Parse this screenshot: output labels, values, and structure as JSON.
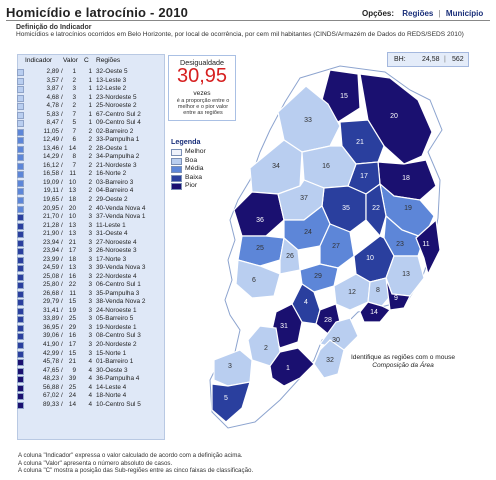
{
  "header": {
    "title": "Homicídio e latrocínio - 2010",
    "options_label": "Opções:",
    "options": [
      "Regiões",
      "Município"
    ]
  },
  "definition": {
    "heading": "Definição do Indicador",
    "text": "Homicídios e latrocínios ocorridos em Belo Horizonte, por local de ocorrência, por cem mil habitantes (CINDS/Armazém de Dados do REDS/SEDS 2010)"
  },
  "table": {
    "headers": {
      "indicator": "Indicador",
      "value": "Valor",
      "class": "C",
      "region": "Regiões"
    },
    "rows": [
      {
        "ind": "2,89",
        "val": "1",
        "c": "1",
        "reg": "32-Oeste 5"
      },
      {
        "ind": "3,57",
        "val": "2",
        "c": "1",
        "reg": "13-Leste 3"
      },
      {
        "ind": "3,87",
        "val": "3",
        "c": "1",
        "reg": "12-Leste 2"
      },
      {
        "ind": "4,68",
        "val": "3",
        "c": "1",
        "reg": "23-Nordeste 5"
      },
      {
        "ind": "4,78",
        "val": "2",
        "c": "1",
        "reg": "25-Noroeste 2"
      },
      {
        "ind": "5,83",
        "val": "7",
        "c": "1",
        "reg": "67-Centro Sul 2"
      },
      {
        "ind": "8,47",
        "val": "5",
        "c": "1",
        "reg": "09-Centro Sul 4"
      },
      {
        "ind": "11,05",
        "val": "7",
        "c": "2",
        "reg": "02-Barreiro 2"
      },
      {
        "ind": "12,49",
        "val": "6",
        "c": "2",
        "reg": "33-Pampulha 1"
      },
      {
        "ind": "13,46",
        "val": "14",
        "c": "2",
        "reg": "28-Oeste 1"
      },
      {
        "ind": "14,29",
        "val": "8",
        "c": "2",
        "reg": "34-Pampulha 2"
      },
      {
        "ind": "16,12",
        "val": "7",
        "c": "2",
        "reg": "21-Nordeste 3"
      },
      {
        "ind": "16,58",
        "val": "11",
        "c": "2",
        "reg": "16-Norte 2"
      },
      {
        "ind": "19,09",
        "val": "10",
        "c": "2",
        "reg": "03-Barreiro 3"
      },
      {
        "ind": "19,11",
        "val": "13",
        "c": "2",
        "reg": "04-Barreiro 4"
      },
      {
        "ind": "19,65",
        "val": "18",
        "c": "2",
        "reg": "29-Oeste 2"
      },
      {
        "ind": "20,95",
        "val": "20",
        "c": "2",
        "reg": "40-Venda Nova 4"
      },
      {
        "ind": "21,70",
        "val": "10",
        "c": "3",
        "reg": "37-Venda Nova 1"
      },
      {
        "ind": "21,28",
        "val": "13",
        "c": "3",
        "reg": "11-Leste 1"
      },
      {
        "ind": "21,90",
        "val": "13",
        "c": "3",
        "reg": "31-Oeste 4"
      },
      {
        "ind": "23,94",
        "val": "21",
        "c": "3",
        "reg": "27-Noroeste 4"
      },
      {
        "ind": "23,94",
        "val": "17",
        "c": "3",
        "reg": "26-Noroeste 3"
      },
      {
        "ind": "23,99",
        "val": "18",
        "c": "3",
        "reg": "17-Norte 3"
      },
      {
        "ind": "24,59",
        "val": "13",
        "c": "3",
        "reg": "39-Venda Nova 3"
      },
      {
        "ind": "25,08",
        "val": "16",
        "c": "3",
        "reg": "22-Nordeste 4"
      },
      {
        "ind": "25,80",
        "val": "22",
        "c": "3",
        "reg": "06-Centro Sul 1"
      },
      {
        "ind": "26,68",
        "val": "11",
        "c": "3",
        "reg": "35-Pampulha 3"
      },
      {
        "ind": "29,79",
        "val": "15",
        "c": "3",
        "reg": "38-Venda Nova 2"
      },
      {
        "ind": "31,41",
        "val": "19",
        "c": "3",
        "reg": "24-Noroeste 1"
      },
      {
        "ind": "33,89",
        "val": "25",
        "c": "3",
        "reg": "05-Barreiro 5"
      },
      {
        "ind": "36,95",
        "val": "29",
        "c": "3",
        "reg": "19-Nordeste 1"
      },
      {
        "ind": "39,06",
        "val": "16",
        "c": "3",
        "reg": "08-Centro Sul 3"
      },
      {
        "ind": "41,90",
        "val": "17",
        "c": "3",
        "reg": "20-Nordeste 2"
      },
      {
        "ind": "42,99",
        "val": "15",
        "c": "3",
        "reg": "15-Norte 1"
      },
      {
        "ind": "45,78",
        "val": "21",
        "c": "4",
        "reg": "01-Barreiro 1"
      },
      {
        "ind": "47,65",
        "val": "9",
        "c": "4",
        "reg": "30-Oeste 3"
      },
      {
        "ind": "48,23",
        "val": "39",
        "c": "4",
        "reg": "36-Pampulha 4"
      },
      {
        "ind": "56,88",
        "val": "25",
        "c": "4",
        "reg": "14-Leste 4"
      },
      {
        "ind": "67,02",
        "val": "24",
        "c": "4",
        "reg": "18-Norte 4"
      },
      {
        "ind": "89,33",
        "val": "14",
        "c": "4",
        "reg": "10-Centro Sul 5"
      }
    ]
  },
  "inequality": {
    "label": "Desigualdade",
    "value": "30,95",
    "unit": "vezes",
    "description": "é a proporção entre o melhor e o pior valor entre as regiões"
  },
  "legend": {
    "title": "Legenda",
    "items": [
      {
        "label": "Melhor",
        "color": "#eef2fb"
      },
      {
        "label": "Boa",
        "color": "#b9cef0"
      },
      {
        "label": "Média",
        "color": "#5d86d8"
      },
      {
        "label": "Baixa",
        "color": "#2a3f9e"
      },
      {
        "label": "Pior",
        "color": "#1a1070"
      }
    ]
  },
  "bh": {
    "label": "BH:",
    "indicator": "24,58",
    "value": "562"
  },
  "map": {
    "note_line1": "Identifique as regiões com o mouse",
    "note_line2": "Composição da Área",
    "region_labels": [
      "15",
      "20",
      "21",
      "33",
      "18",
      "17",
      "34",
      "16",
      "19",
      "35",
      "22",
      "23",
      "36",
      "37",
      "24",
      "25",
      "26",
      "27",
      "29",
      "10",
      "13",
      "11",
      "12",
      "8",
      "9",
      "14",
      "4",
      "6",
      "28",
      "30",
      "31",
      "32",
      "2",
      "3",
      "1",
      "5"
    ]
  },
  "notes": [
    "A coluna \"Indicador\" expressa o valor calculado de acordo com a definição acima.",
    "A coluna \"Valor\" apresenta o número absoluto de casos.",
    "A coluna \"C\" mostra a posição das Sub-regiões entre as cinco faixas de classificação."
  ],
  "colors": {
    "class1": "#eef2fb",
    "class2": "#b9cef0",
    "class3": "#5d86d8",
    "class4": "#2a3f9e",
    "class5": "#1a1070",
    "accent_red": "#d62020",
    "link": "#1a2f7a"
  }
}
